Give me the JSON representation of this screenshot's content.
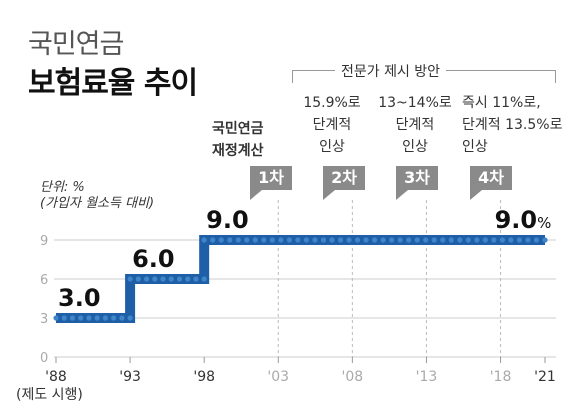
{
  "title_line1": "국민연금",
  "title_line2": "보험료율 추이",
  "unit_line1": "단위: %",
  "unit_line2": "(가입자 월소득 대비)",
  "gov_plan_title": "전문가 제시 방안",
  "fin_calc_label_line1": "국민연금",
  "fin_calc_label_line2": "재정계산",
  "x_note": "(제도 시행)",
  "plans": [
    {
      "line1": "15.9%로",
      "line2": "단계적",
      "line3": "인상"
    },
    {
      "line1": "13~14%로",
      "line2": "단계적",
      "line3": "인상"
    },
    {
      "line1": "즉시 11%로,",
      "line2": "단계적 13.5%로",
      "line3": "인상"
    }
  ],
  "badges": [
    {
      "label": "1차",
      "year": 2003
    },
    {
      "label": "2차",
      "year": 2008
    },
    {
      "label": "3차",
      "year": 2013
    },
    {
      "label": "4차",
      "year": 2018
    }
  ],
  "colors": {
    "line": "#1f5fa8",
    "dot": "#3f86c8",
    "badge": "#8a8a8a",
    "grid": "#cccccc"
  },
  "chart_data": {
    "type": "line",
    "title": "국민연금 보험료율 추이",
    "ylabel": "단위: % (가입자 월소득 대비)",
    "ylim": [
      0,
      9
    ],
    "yticks": [
      0,
      3,
      6,
      9
    ],
    "xlim": [
      1988,
      2021
    ],
    "xticks": [
      {
        "year": 1988,
        "label": "'88",
        "highlight": true
      },
      {
        "year": 1993,
        "label": "'93",
        "highlight": true
      },
      {
        "year": 1998,
        "label": "'98",
        "highlight": true
      },
      {
        "year": 2003,
        "label": "'03",
        "highlight": false
      },
      {
        "year": 2008,
        "label": "'08",
        "highlight": false
      },
      {
        "year": 2013,
        "label": "'13",
        "highlight": false
      },
      {
        "year": 2018,
        "label": "'18",
        "highlight": false
      },
      {
        "year": 2021,
        "label": "'21",
        "highlight": true
      }
    ],
    "series": [
      {
        "name": "보험료율",
        "step": true,
        "points": [
          {
            "x": 1988,
            "y": 3.0
          },
          {
            "x": 1993,
            "y": 6.0
          },
          {
            "x": 1998,
            "y": 9.0
          },
          {
            "x": 2021,
            "y": 9.0
          }
        ]
      }
    ],
    "data_labels": [
      {
        "x": 1988,
        "y": 3.0,
        "text": "3.0"
      },
      {
        "x": 1993,
        "y": 6.0,
        "text": "6.0"
      },
      {
        "x": 1998,
        "y": 9.0,
        "text": "9.0"
      },
      {
        "x": 2021,
        "y": 9.0,
        "text": "9.0",
        "suffix": "%"
      }
    ],
    "grid": true
  }
}
